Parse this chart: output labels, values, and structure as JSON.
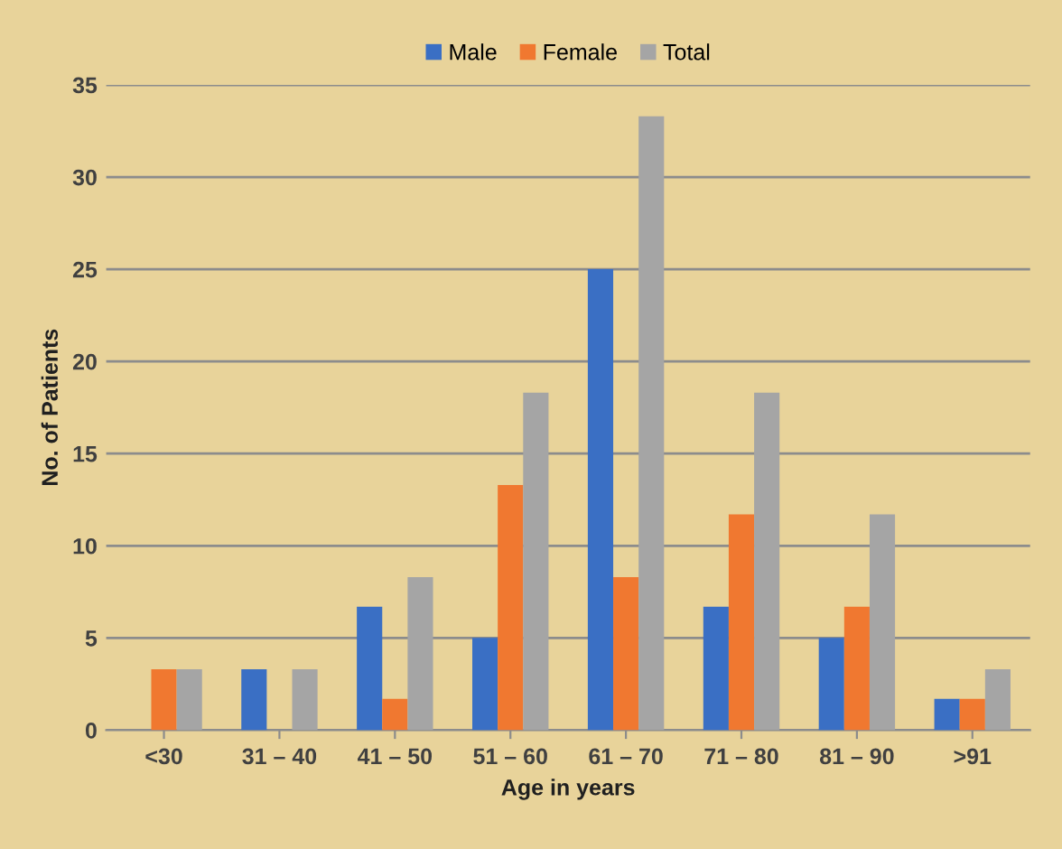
{
  "chart_data": {
    "type": "bar",
    "xlabel": "Age in years",
    "ylabel": "No. of Patients",
    "categories": [
      "<30",
      "31 – 40",
      "41 – 50",
      "51 – 60",
      "61 – 70",
      "71 – 80",
      "81 – 90",
      ">91"
    ],
    "series": [
      {
        "name": "Male",
        "color": "#3a6fc4",
        "values": [
          0,
          3.3,
          6.7,
          5,
          25,
          6.7,
          5,
          1.7
        ]
      },
      {
        "name": "Female",
        "color": "#f07830",
        "values": [
          3.3,
          0,
          1.7,
          13.3,
          8.3,
          11.7,
          6.7,
          1.7
        ]
      },
      {
        "name": "Total",
        "color": "#a5a5a5",
        "values": [
          3.3,
          3.3,
          8.3,
          18.3,
          33.3,
          18.3,
          11.7,
          3.3
        ]
      }
    ],
    "ylim": [
      0,
      35
    ],
    "yticks": [
      0,
      5,
      10,
      15,
      20,
      25,
      30,
      35
    ],
    "grid": "y",
    "legend": "top"
  }
}
